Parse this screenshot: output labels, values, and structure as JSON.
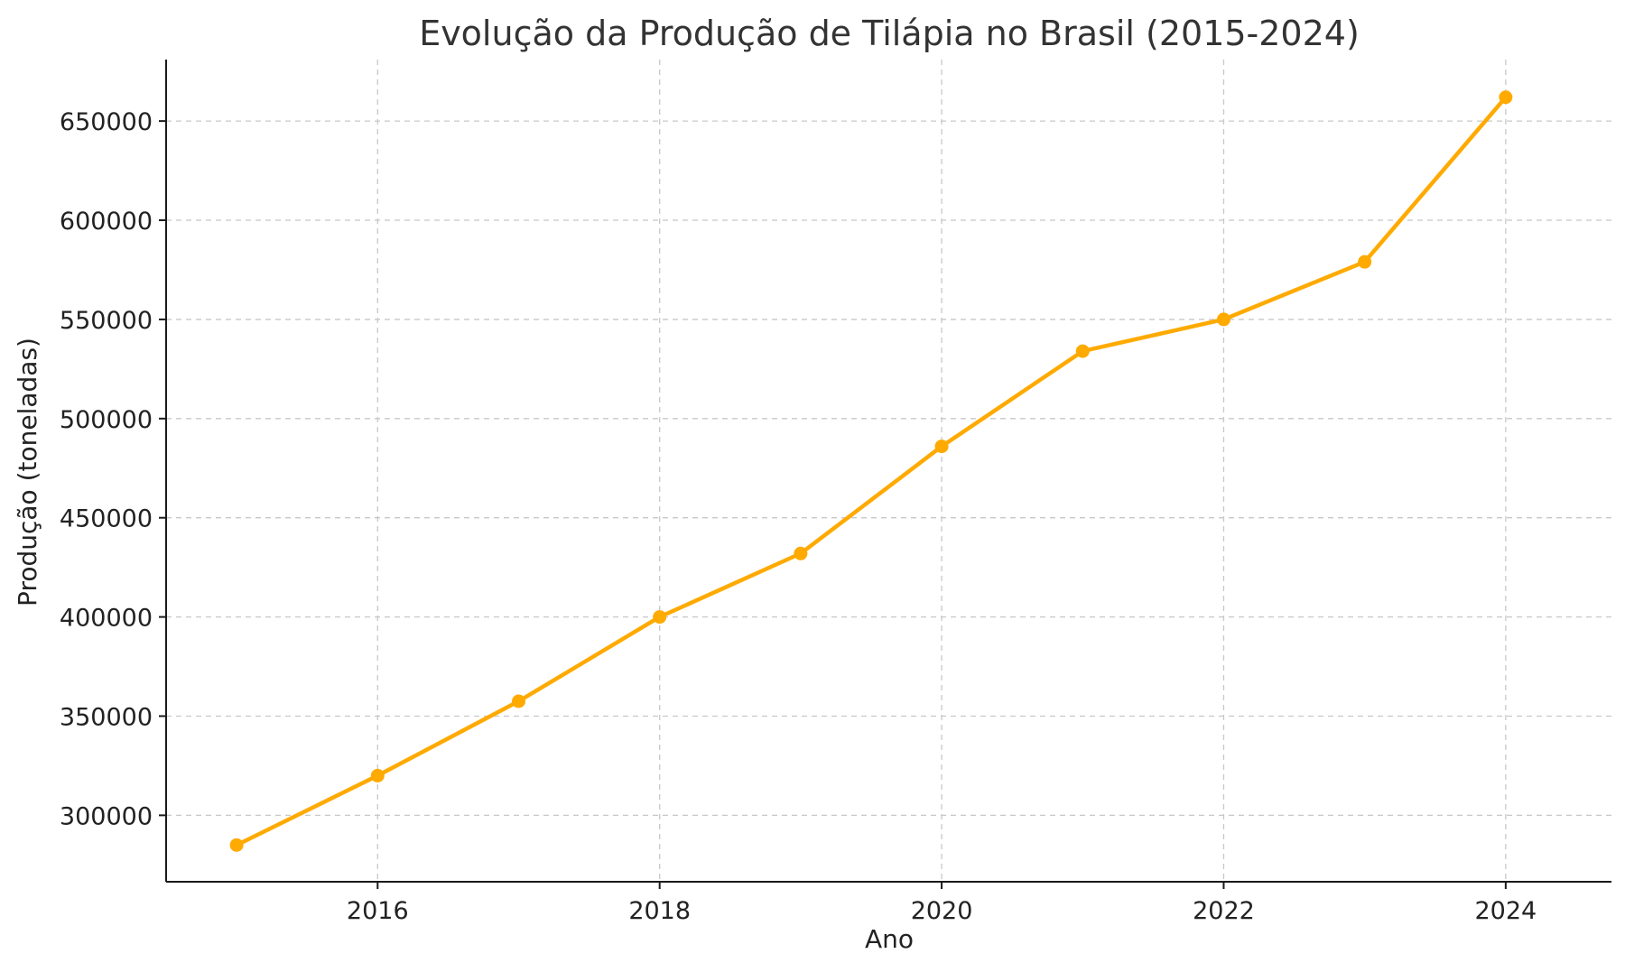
{
  "chart_data": {
    "type": "line",
    "title": "Evolução da Produção de Tilápia no Brasil (2015-2024)",
    "xlabel": "Ano",
    "ylabel": "Produção (toneladas)",
    "x": [
      2015,
      2016,
      2017,
      2018,
      2019,
      2020,
      2021,
      2022,
      2023,
      2024
    ],
    "series": [
      {
        "values": [
          285000,
          320000,
          357500,
          400000,
          432000,
          486000,
          534000,
          550000,
          579000,
          662000
        ]
      }
    ],
    "xlim": [
      2014.5,
      2024.75
    ],
    "ylim": [
      266500,
      681000
    ],
    "x_ticks": [
      2016,
      2018,
      2020,
      2022,
      2024
    ],
    "y_ticks": [
      300000,
      350000,
      400000,
      450000,
      500000,
      550000,
      600000,
      650000
    ],
    "grid": true,
    "line_color": "#FFAA00",
    "axis_color": "#1a1a1a",
    "grid_color": "#c8c8c8"
  }
}
